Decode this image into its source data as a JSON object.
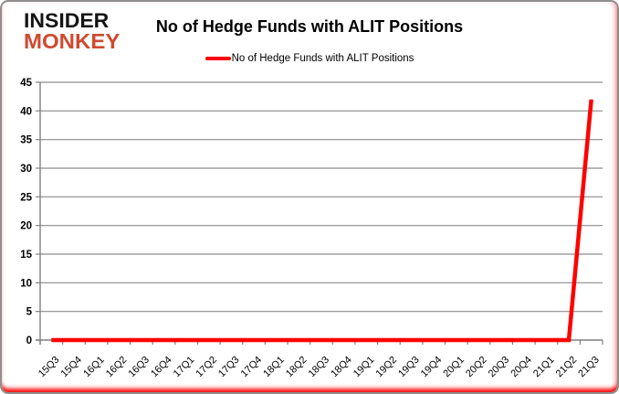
{
  "logo": {
    "line1": "INSIDER",
    "line2": "MONKEY",
    "line1_color": "#141414",
    "line2_color": "#cf4a31"
  },
  "header": {
    "title": "No of Hedge Funds with ALIT Positions"
  },
  "legend": {
    "label": "No of Hedge Funds with ALIT Positions",
    "line_color": "#ff0000"
  },
  "colors": {
    "series_red": "#ff0000",
    "gridline": "#8c8c8c",
    "axis": "#808080",
    "tick_label": "#000000",
    "frame_border": "#8f8f8f",
    "frame_bottom_accent": "#ff0000"
  },
  "chart_data": {
    "type": "line",
    "title": "No of Hedge Funds with ALIT Positions",
    "categories": [
      "15Q3",
      "15Q4",
      "16Q1",
      "16Q2",
      "16Q3",
      "16Q4",
      "17Q1",
      "17Q2",
      "17Q3",
      "17Q4",
      "18Q1",
      "18Q2",
      "18Q3",
      "18Q4",
      "19Q1",
      "19Q2",
      "19Q3",
      "19Q4",
      "20Q1",
      "20Q2",
      "20Q3",
      "20Q4",
      "21Q1",
      "21Q2",
      "21Q3"
    ],
    "series": [
      {
        "name": "No of Hedge Funds with ALIT Positions",
        "color": "#ff0000",
        "values": [
          0,
          0,
          0,
          0,
          0,
          0,
          0,
          0,
          0,
          0,
          0,
          0,
          0,
          0,
          0,
          0,
          0,
          0,
          0,
          0,
          0,
          0,
          0,
          0,
          42
        ]
      }
    ],
    "xlabel": "",
    "ylabel": "",
    "ylim": [
      0,
      45
    ],
    "ytick_step": 5,
    "grid": true,
    "legend_position": "top-center",
    "x_tick_label_rotation": 45
  }
}
